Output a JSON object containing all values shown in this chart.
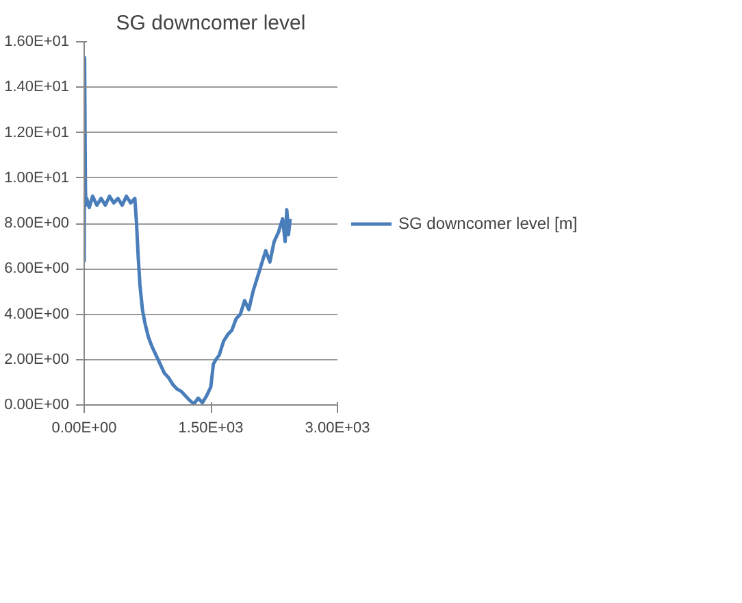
{
  "chart_data": {
    "type": "line",
    "title": "SG downcomer level",
    "xlim": [
      0,
      3000
    ],
    "ylim": [
      0,
      16
    ],
    "xticks": [
      {
        "value": 0,
        "label": "0.00E+00"
      },
      {
        "value": 1500,
        "label": "1.50E+03"
      },
      {
        "value": 3000,
        "label": "3.00E+03"
      }
    ],
    "yticks": [
      {
        "value": 0,
        "label": "0.00E+00"
      },
      {
        "value": 2,
        "label": "2.00E+00"
      },
      {
        "value": 4,
        "label": "4.00E+00"
      },
      {
        "value": 6,
        "label": "6.00E+00"
      },
      {
        "value": 8,
        "label": "8.00E+00"
      },
      {
        "value": 10,
        "label": "1.00E+01"
      },
      {
        "value": 12,
        "label": "1.20E+01"
      },
      {
        "value": 14,
        "label": "1.40E+01"
      },
      {
        "value": 16,
        "label": "1.60E+01"
      }
    ],
    "grid": "y",
    "legend": "right",
    "marker": "none",
    "line_style": "solid",
    "series": [
      {
        "name": "SG downcomer level [m]",
        "color": "#4a7ebb",
        "x": [
          0,
          5,
          10,
          15,
          20,
          30,
          60,
          100,
          150,
          200,
          250,
          300,
          350,
          400,
          450,
          500,
          550,
          600,
          620,
          640,
          660,
          690,
          720,
          760,
          800,
          850,
          900,
          950,
          1000,
          1050,
          1100,
          1150,
          1200,
          1250,
          1300,
          1350,
          1400,
          1450,
          1500,
          1530,
          1560,
          1600,
          1650,
          1700,
          1750,
          1800,
          1850,
          1900,
          1950,
          2000,
          2050,
          2100,
          2150,
          2200,
          2250,
          2300,
          2350,
          2380,
          2400,
          2420,
          2440
        ],
        "values": [
          6.3,
          15.3,
          12.0,
          9.5,
          8.8,
          9.1,
          8.7,
          9.2,
          8.8,
          9.1,
          8.8,
          9.2,
          8.9,
          9.1,
          8.8,
          9.2,
          8.9,
          9.1,
          8.0,
          6.5,
          5.3,
          4.2,
          3.6,
          3.0,
          2.6,
          2.2,
          1.8,
          1.4,
          1.2,
          0.9,
          0.7,
          0.6,
          0.4,
          0.2,
          0.05,
          0.3,
          0.1,
          0.4,
          0.8,
          1.8,
          2.0,
          2.2,
          2.8,
          3.1,
          3.3,
          3.8,
          4.0,
          4.6,
          4.2,
          5.0,
          5.6,
          6.2,
          6.8,
          6.3,
          7.2,
          7.6,
          8.2,
          7.2,
          8.6,
          7.5,
          8.2
        ]
      }
    ]
  }
}
